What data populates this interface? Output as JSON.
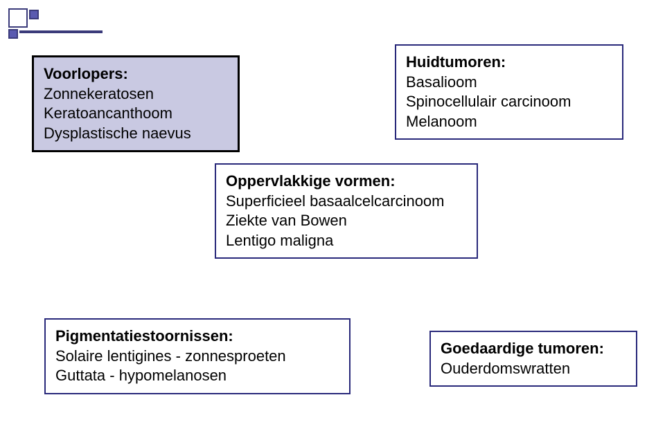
{
  "colors": {
    "background": "#ffffff",
    "box_border_dark": "#000000",
    "box_border_blue": "#28287a",
    "box_fill_lavender": "#c9c9e2",
    "text": "#000000",
    "logo_fill": "#5a5ab0",
    "logo_border": "#3a3a7a"
  },
  "typography": {
    "font_family": "Arial",
    "body_fontsize": 22,
    "heading_weight": "bold"
  },
  "boxes": {
    "voorlopers": {
      "heading": "Voorlopers:",
      "line1": "Zonnekeratosen",
      "line2": "Keratoancanthoom",
      "line3": "Dysplastische naevus",
      "fill": "#c9c9e2",
      "border": "#000000",
      "border_width": 3
    },
    "huidtumoren": {
      "heading": "Huidtumoren:",
      "line1": "Basalioom",
      "line2": "Spinocellulair carcinoom",
      "line3": "Melanoom",
      "fill": "#ffffff",
      "border": "#28287a",
      "border_width": 2
    },
    "vormen": {
      "heading": "Oppervlakkige vormen:",
      "line1": "Superficieel basaalcelcarcinoom",
      "line2": "Ziekte van Bowen",
      "line3": "Lentigo maligna",
      "fill": "#ffffff",
      "border": "#28287a",
      "border_width": 2
    },
    "pigment": {
      "heading": "Pigmentatiestoornissen:",
      "line1": "Solaire lentigines - zonnesproeten",
      "line2": "Guttata - hypomelanosen",
      "fill": "#ffffff",
      "border": "#28287a",
      "border_width": 2
    },
    "goedaardig": {
      "heading": "Goedaardige tumoren:",
      "line1": "Ouderdomswratten",
      "fill": "#ffffff",
      "border": "#28287a",
      "border_width": 2
    }
  }
}
